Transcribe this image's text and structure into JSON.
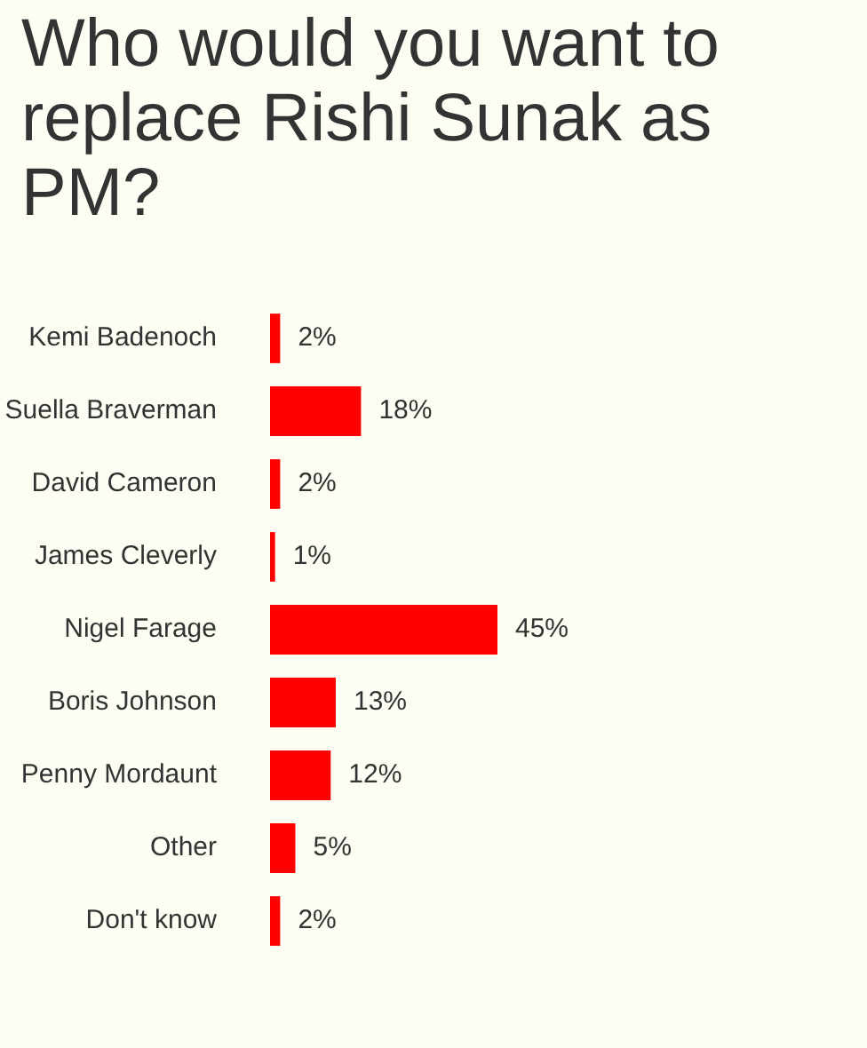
{
  "chart_data": {
    "type": "bar",
    "orientation": "horizontal",
    "title": "Who would you want to replace Rishi Sunak as PM?",
    "categories": [
      "Kemi Badenoch",
      "Suella Braverman",
      "David Cameron",
      "James Cleverly",
      "Nigel Farage",
      "Boris Johnson",
      "Penny Mordaunt",
      "Other",
      "Don't know"
    ],
    "values": [
      2,
      18,
      2,
      1,
      45,
      13,
      12,
      5,
      2
    ],
    "value_labels": [
      "2%",
      "18%",
      "2%",
      "1%",
      "45%",
      "13%",
      "12%",
      "5%",
      "2%"
    ],
    "color": "#ff0000"
  }
}
